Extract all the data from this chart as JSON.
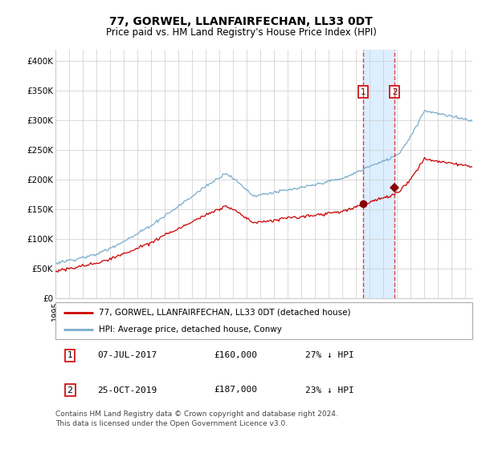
{
  "title": "77, GORWEL, LLANFAIRFECHAN, LL33 0DT",
  "subtitle": "Price paid vs. HM Land Registry's House Price Index (HPI)",
  "legend_red": "77, GORWEL, LLANFAIRFECHAN, LL33 0DT (detached house)",
  "legend_blue": "HPI: Average price, detached house, Conwy",
  "annotation1_date": "07-JUL-2017",
  "annotation1_price": "£160,000",
  "annotation1_pct": "27% ↓ HPI",
  "annotation2_date": "25-OCT-2019",
  "annotation2_price": "£187,000",
  "annotation2_pct": "23% ↓ HPI",
  "footer": "Contains HM Land Registry data © Crown copyright and database right 2024.\nThis data is licensed under the Open Government Licence v3.0.",
  "red_color": "#cc0000",
  "blue_color": "#7aadcc",
  "marker_color": "#880000",
  "annotation_box_color": "#cc0000",
  "shading_color": "#ddeeff",
  "grid_color": "#cccccc",
  "background_color": "#ffffff",
  "sale1_date_num": 2017.52,
  "sale2_date_num": 2019.82,
  "sale1_price": 160000,
  "sale2_price": 187000,
  "ylim": [
    0,
    420000
  ],
  "yticks": [
    0,
    50000,
    100000,
    150000,
    200000,
    250000,
    300000,
    350000,
    400000
  ],
  "ytick_labels": [
    "£0",
    "£50K",
    "£100K",
    "£150K",
    "£200K",
    "£250K",
    "£300K",
    "£350K",
    "£400K"
  ]
}
